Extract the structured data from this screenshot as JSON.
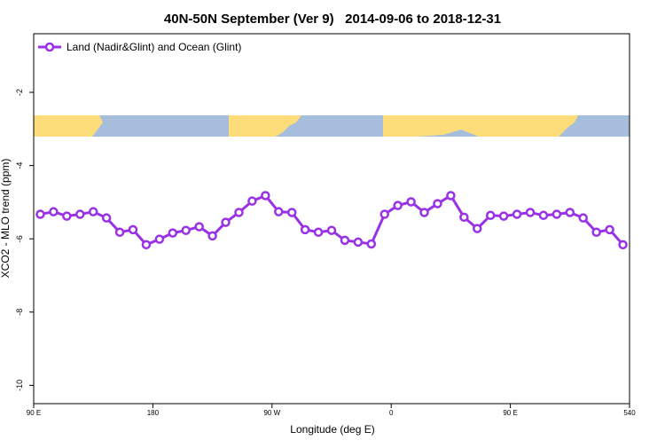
{
  "chart_data": {
    "type": "line",
    "title": "40N-50N September (Ver 9)   2014-09-06 to 2018-12-31",
    "xlabel": "Longitude (deg E)",
    "ylabel": "XCO2 - MLO trend (ppm)",
    "x": [
      95,
      105,
      115,
      125,
      135,
      145,
      155,
      165,
      175,
      185,
      195,
      205,
      215,
      225,
      235,
      245,
      255,
      265,
      275,
      285,
      295,
      305,
      315,
      325,
      335,
      345,
      355,
      365,
      375,
      385,
      395,
      405,
      415,
      425,
      435,
      445,
      455,
      465,
      475,
      485,
      495,
      505,
      515,
      525,
      535
    ],
    "series": [
      {
        "name": "Land (Nadir&Glint) and Ocean (Glint)",
        "color": "#9932e6",
        "values": [
          -5.33,
          -5.26,
          -5.38,
          -5.33,
          -5.26,
          -5.43,
          -5.82,
          -5.75,
          -6.16,
          -6.01,
          -5.84,
          -5.77,
          -5.67,
          -5.92,
          -5.55,
          -5.28,
          -4.97,
          -4.82,
          -5.26,
          -5.28,
          -5.75,
          -5.82,
          -5.77,
          -6.04,
          -6.09,
          -6.14,
          -5.33,
          -5.09,
          -4.99,
          -5.28,
          -5.04,
          -4.82,
          -5.41,
          -5.72,
          -5.36,
          -5.38,
          -5.33,
          -5.28,
          -5.36,
          -5.33,
          -5.28,
          -5.43,
          -5.82,
          -5.75,
          -6.16
        ]
      }
    ],
    "xlim": [
      90,
      540
    ],
    "xticks": [
      {
        "value": 90,
        "label": "90 E"
      },
      180,
      {
        "value": 270,
        "label": "90 W"
      },
      {
        "value": 360,
        "label": "0"
      },
      {
        "value": 450,
        "label": "90 E"
      },
      540
    ],
    "ylim": [
      -10.5,
      -0.4
    ],
    "yticks": [
      -2,
      -4,
      -6,
      -8,
      -10
    ],
    "legend": "top-left"
  }
}
